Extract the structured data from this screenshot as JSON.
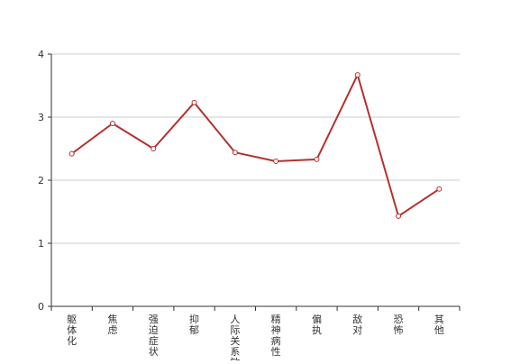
{
  "chart_data": {
    "type": "line",
    "categories": [
      "躯体化",
      "焦虑",
      "强迫症状",
      "抑郁",
      "人际关系敏感",
      "精神病性",
      "偏执",
      "敌对",
      "恐怖",
      "其他"
    ],
    "series": [
      {
        "values": [
          2.42,
          2.9,
          2.5,
          3.23,
          2.44,
          2.3,
          2.33,
          3.67,
          1.43,
          1.86
        ]
      }
    ],
    "ylim": [
      0,
      4
    ],
    "yticks": [
      0,
      1,
      2,
      3,
      4
    ],
    "grid": true,
    "colors": {
      "line": "#b5302e",
      "marker_fill": "#ffffff",
      "grid": "#cccccc",
      "axis": "#333333",
      "text": "#333333"
    }
  }
}
